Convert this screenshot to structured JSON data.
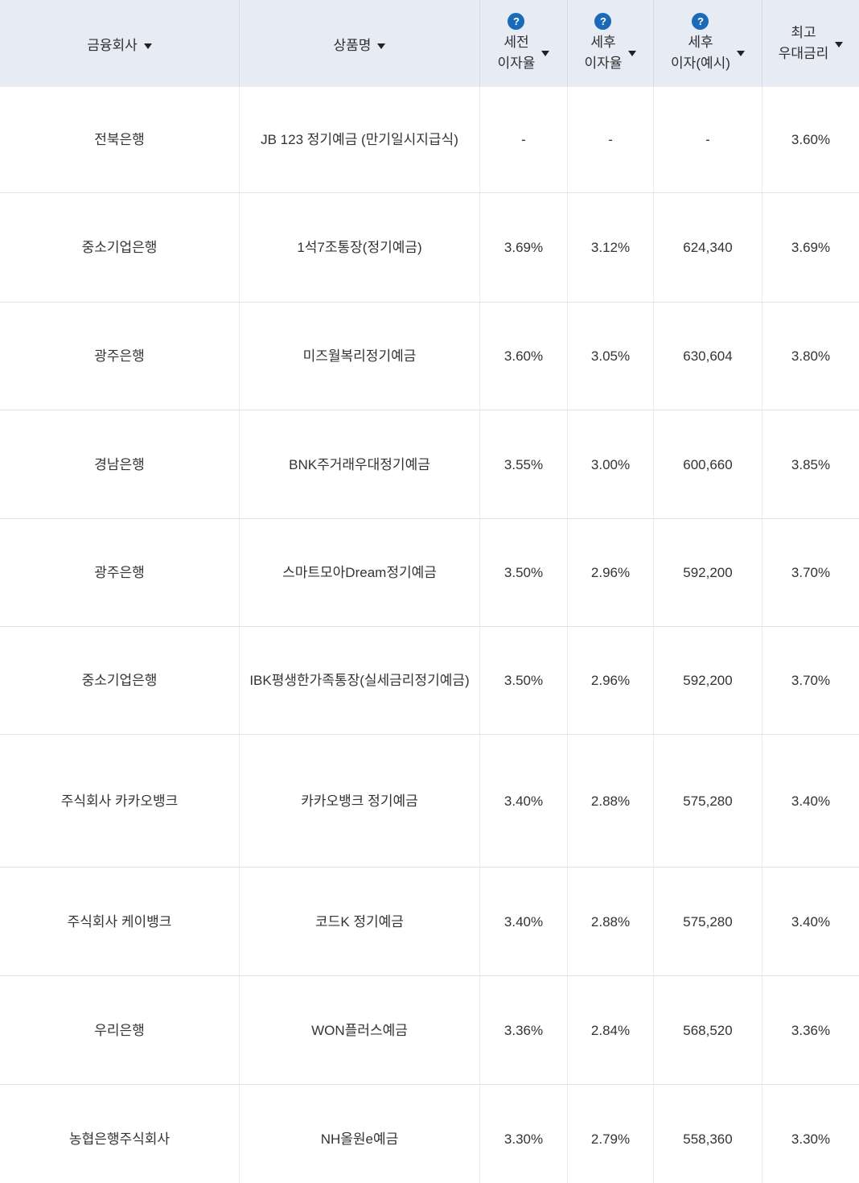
{
  "table": {
    "header": {
      "company": {
        "label": "금융회사"
      },
      "product": {
        "label": "상품명"
      },
      "pretax": {
        "line1": "세전",
        "line2": "이자율"
      },
      "posttax": {
        "line1": "세후",
        "line2": "이자율"
      },
      "interest": {
        "line1": "세후",
        "line2": "이자(예시)"
      },
      "max": {
        "line1": "최고",
        "line2": "우대금리"
      },
      "help_glyph": "?"
    },
    "rows": [
      {
        "company": "전북은행",
        "product": "JB 123 정기예금 (만기일시지급식)",
        "pretax": "-",
        "posttax": "-",
        "interest": "-",
        "max": "3.60%"
      },
      {
        "company": "중소기업은행",
        "product": "1석7조통장(정기예금)",
        "pretax": "3.69%",
        "posttax": "3.12%",
        "interest": "624,340",
        "max": "3.69%"
      },
      {
        "company": "광주은행",
        "product": "미즈월복리정기예금",
        "pretax": "3.60%",
        "posttax": "3.05%",
        "interest": "630,604",
        "max": "3.80%"
      },
      {
        "company": "경남은행",
        "product": "BNK주거래우대정기예금",
        "pretax": "3.55%",
        "posttax": "3.00%",
        "interest": "600,660",
        "max": "3.85%"
      },
      {
        "company": "광주은행",
        "product": "스마트모아Dream정기예금",
        "pretax": "3.50%",
        "posttax": "2.96%",
        "interest": "592,200",
        "max": "3.70%"
      },
      {
        "company": "중소기업은행",
        "product": "IBK평생한가족통장(실세금리정기예금)",
        "pretax": "3.50%",
        "posttax": "2.96%",
        "interest": "592,200",
        "max": "3.70%"
      },
      {
        "company": "주식회사 카카오뱅크",
        "product": "카카오뱅크 정기예금",
        "pretax": "3.40%",
        "posttax": "2.88%",
        "interest": "575,280",
        "max": "3.40%"
      },
      {
        "company": "주식회사 케이뱅크",
        "product": "코드K 정기예금",
        "pretax": "3.40%",
        "posttax": "2.88%",
        "interest": "575,280",
        "max": "3.40%"
      },
      {
        "company": "우리은행",
        "product": "WON플러스예금",
        "pretax": "3.36%",
        "posttax": "2.84%",
        "interest": "568,520",
        "max": "3.36%"
      },
      {
        "company": "농협은행주식회사",
        "product": "NH올원e예금",
        "pretax": "3.30%",
        "posttax": "2.79%",
        "interest": "558,360",
        "max": "3.30%"
      }
    ],
    "colors": {
      "header_bg": "#e6ebf4",
      "help_icon_blue": "#1a6ab8",
      "text": "#333333",
      "row_border": "#e3e3e3"
    }
  }
}
